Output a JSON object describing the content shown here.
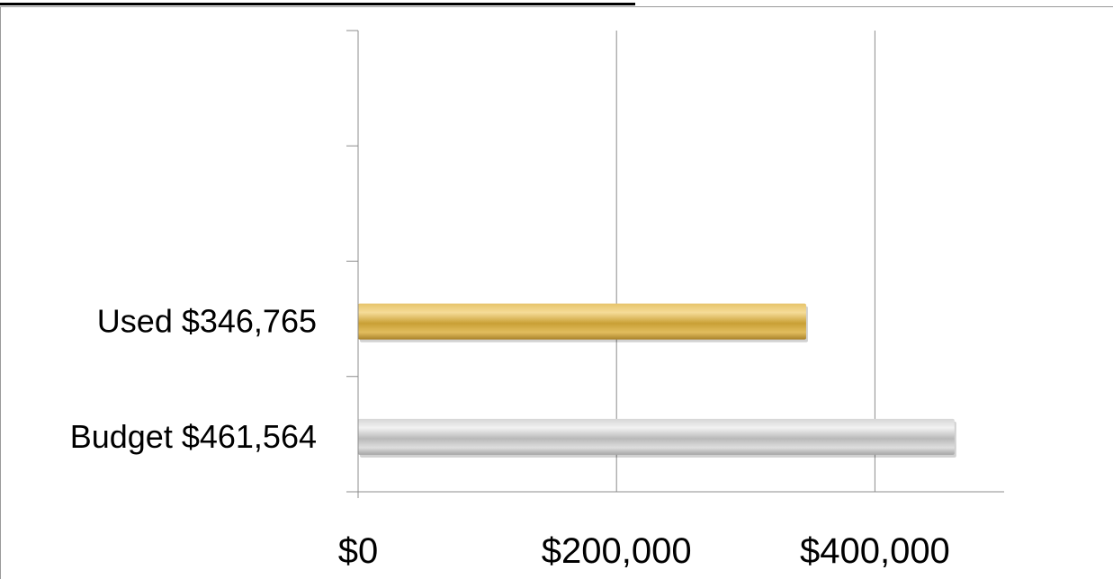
{
  "chart_data": {
    "type": "bar",
    "orientation": "horizontal",
    "categories": [
      "Budget $461,564",
      "Used $346,765"
    ],
    "values": [
      461564,
      346765
    ],
    "colors": [
      "#c4c4c4",
      "#c9a035"
    ],
    "x_tick_values": [
      0,
      200000,
      400000
    ],
    "x_tick_labels": [
      "$0",
      "$200,000",
      "$400,000"
    ],
    "xlim": [
      0,
      500000
    ],
    "category_slots": 4,
    "grid": {
      "vertical": true,
      "horizontal": false
    },
    "title": "",
    "xlabel": "",
    "ylabel": ""
  }
}
